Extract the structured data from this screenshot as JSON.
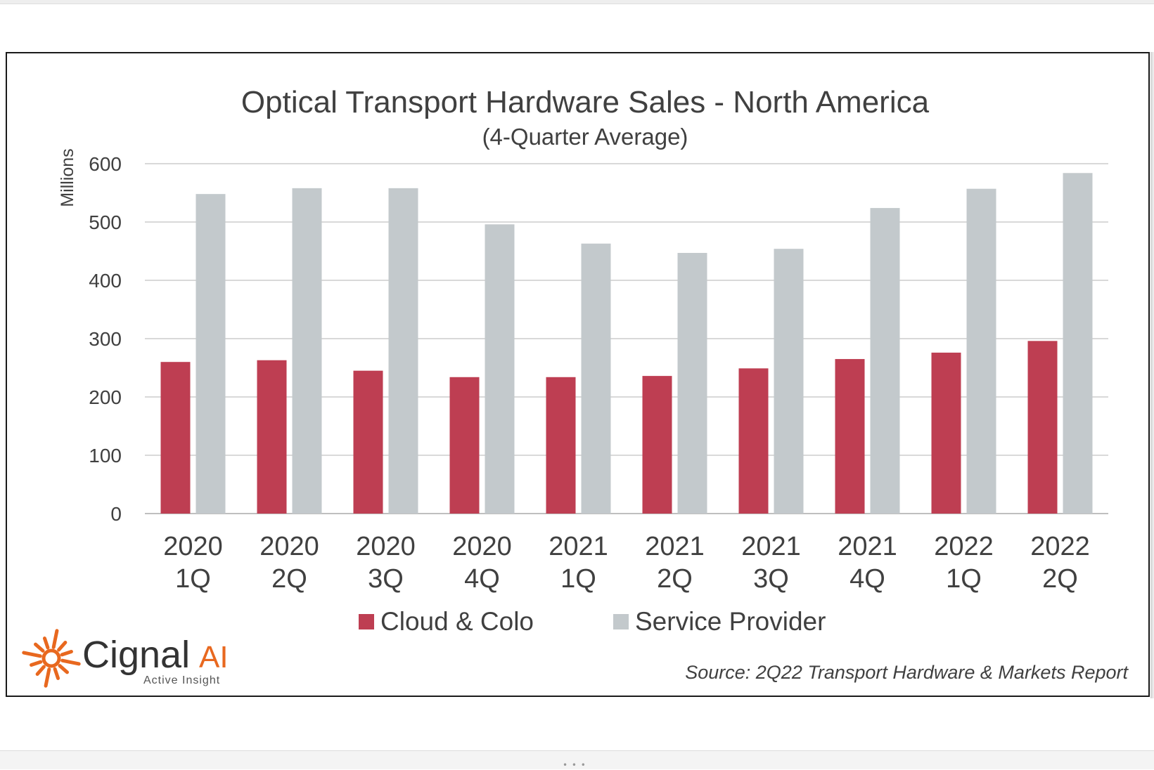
{
  "logo": {
    "brand": "Cignal",
    "brand_suffix": "AI",
    "tagline": "Active Insight"
  },
  "source_note": "Source: 2Q22 Transport Hardware & Markets Report",
  "colors": {
    "cloud_colo": "#be3e52",
    "service_provider": "#c3c9cc",
    "grid": "#d9d9d9",
    "text": "#404040",
    "logo_orange": "#e8681f",
    "logo_text": "#333333"
  },
  "chart_data": {
    "type": "bar",
    "title": "Optical Transport Hardware Sales - North America",
    "subtitle": "(4-Quarter Average)",
    "ylabel": "Millions",
    "xlabel": "",
    "ylim": [
      0,
      600
    ],
    "yticks": [
      0,
      100,
      200,
      300,
      400,
      500,
      600
    ],
    "grid": true,
    "legend_position": "bottom",
    "categories": [
      [
        "2020",
        "1Q"
      ],
      [
        "2020",
        "2Q"
      ],
      [
        "2020",
        "3Q"
      ],
      [
        "2020",
        "4Q"
      ],
      [
        "2021",
        "1Q"
      ],
      [
        "2021",
        "2Q"
      ],
      [
        "2021",
        "3Q"
      ],
      [
        "2021",
        "4Q"
      ],
      [
        "2022",
        "1Q"
      ],
      [
        "2022",
        "2Q"
      ]
    ],
    "series": [
      {
        "name": "Cloud & Colo",
        "values": [
          260,
          263,
          245,
          234,
          234,
          236,
          249,
          265,
          276,
          296
        ]
      },
      {
        "name": "Service Provider",
        "values": [
          548,
          558,
          558,
          496,
          463,
          447,
          454,
          524,
          557,
          584
        ]
      }
    ]
  }
}
